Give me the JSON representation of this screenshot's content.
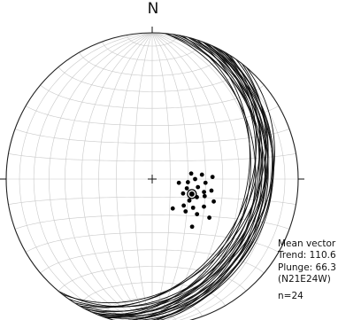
{
  "plot": {
    "north_label": "N",
    "net_type": "equal-area lower-hemisphere stereonet",
    "colors": {
      "great_circles": "#111111",
      "grid": "#c9c9c9",
      "poles": "#000000",
      "primitive": "#222222"
    }
  },
  "stats": {
    "title": "Mean vector",
    "trend": "Trend: 110.6",
    "plunge": "Plunge: 66.3",
    "plane": "(N21E24W)",
    "n": "n=24"
  },
  "chart_data": {
    "type": "scatter",
    "series": [
      {
        "values": [
          {
            "trend": 145,
            "plunge": 70
          },
          {
            "trend": 120,
            "plunge": 66
          },
          {
            "trend": 105,
            "plunge": 70
          },
          {
            "trend": 95,
            "plunge": 70
          },
          {
            "trend": 100,
            "plunge": 64
          },
          {
            "trend": 112,
            "plunge": 63
          },
          {
            "trend": 125,
            "plunge": 62
          },
          {
            "trend": 104,
            "plunge": 60
          },
          {
            "trend": 90,
            "plunge": 66
          },
          {
            "trend": 94,
            "plunge": 60
          },
          {
            "trend": 118,
            "plunge": 57
          },
          {
            "trend": 101,
            "plunge": 56
          },
          {
            "trend": 85,
            "plunge": 62
          },
          {
            "trend": 110,
            "plunge": 53
          },
          {
            "trend": 128,
            "plunge": 58
          },
          {
            "trend": 134,
            "plunge": 64
          },
          {
            "trend": 115,
            "plunge": 71
          },
          {
            "trend": 88,
            "plunge": 56
          },
          {
            "trend": 124,
            "plunge": 51
          },
          {
            "trend": 140,
            "plunge": 55
          },
          {
            "trend": 98,
            "plunge": 75
          },
          {
            "trend": 82,
            "plunge": 68
          },
          {
            "trend": 108,
            "plunge": 59
          },
          {
            "trend": 130,
            "plunge": 67
          }
        ]
      }
    ],
    "mean_vector": {
      "trend": 110.6,
      "plunge": 66.3
    },
    "great_circles": [
      {
        "strike": 20.6,
        "dip": 23.7
      },
      {
        "strike": 14,
        "dip": 28
      },
      {
        "strike": 25,
        "dip": 20
      },
      {
        "strike": 30,
        "dip": 26
      },
      {
        "strike": 10,
        "dip": 22
      },
      {
        "strike": 22,
        "dip": 33
      },
      {
        "strike": 18,
        "dip": 36
      },
      {
        "strike": 27,
        "dip": 30
      },
      {
        "strike": 35,
        "dip": 28
      },
      {
        "strike": 32,
        "dip": 34
      },
      {
        "strike": 5,
        "dip": 30
      },
      {
        "strike": 8,
        "dip": 26
      },
      {
        "strike": 15,
        "dip": 24
      },
      {
        "strike": 28,
        "dip": 22
      },
      {
        "strike": 20,
        "dip": 30
      },
      {
        "strike": 12,
        "dip": 34
      },
      {
        "strike": 24,
        "dip": 26
      },
      {
        "strike": 38,
        "dip": 32
      },
      {
        "strike": 20,
        "dip": 20
      },
      {
        "strike": 40,
        "dip": 24
      },
      {
        "strike": 15,
        "dip": 19
      },
      {
        "strike": 5,
        "dip": 24
      },
      {
        "strike": 30,
        "dip": 36
      },
      {
        "strike": 22,
        "dip": 28
      }
    ],
    "grid": "on"
  }
}
